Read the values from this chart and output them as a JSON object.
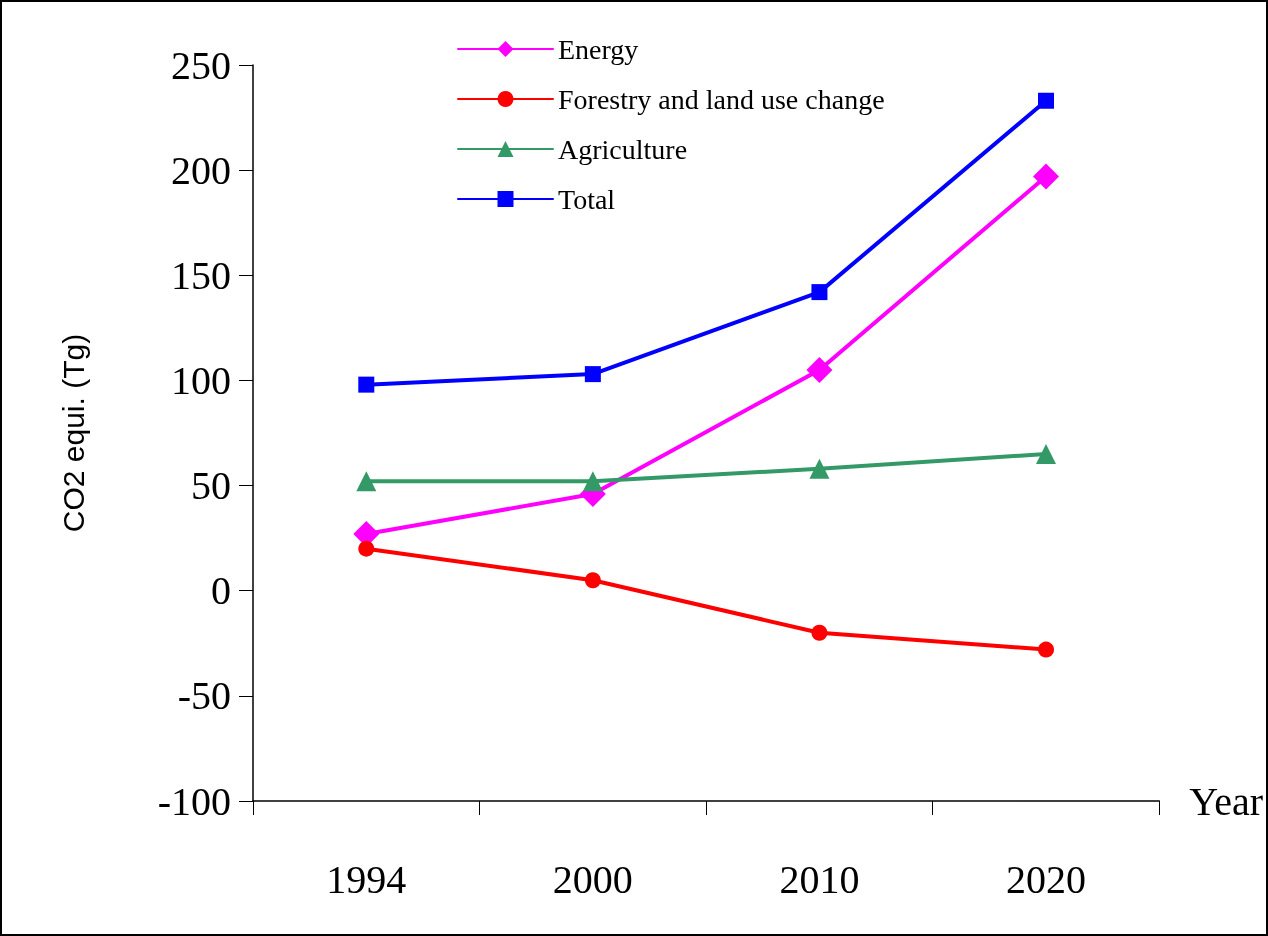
{
  "chart_data": {
    "type": "line",
    "xlabel": "Year",
    "ylabel": "CO2 equi. (Tg)",
    "categories": [
      "1994",
      "2000",
      "2010",
      "2020"
    ],
    "series": [
      {
        "name": "Energy",
        "color": "#ff00ff",
        "marker": "diamond",
        "values": [
          27,
          46,
          105,
          197
        ]
      },
      {
        "name": "Forestry and land use change",
        "color": "#ff0000",
        "marker": "circle",
        "values": [
          20,
          5,
          -20,
          -28
        ]
      },
      {
        "name": "Agriculture",
        "color": "#339966",
        "marker": "triangle",
        "values": [
          52,
          52,
          58,
          65
        ]
      },
      {
        "name": "Total",
        "color": "#0000ff",
        "marker": "square",
        "values": [
          98,
          103,
          142,
          233
        ]
      }
    ],
    "ylim": [
      -100,
      250
    ],
    "yticks": [
      -100,
      -50,
      0,
      50,
      100,
      150,
      200,
      250
    ],
    "grid": false,
    "legend": "top",
    "line_style": "solid"
  }
}
